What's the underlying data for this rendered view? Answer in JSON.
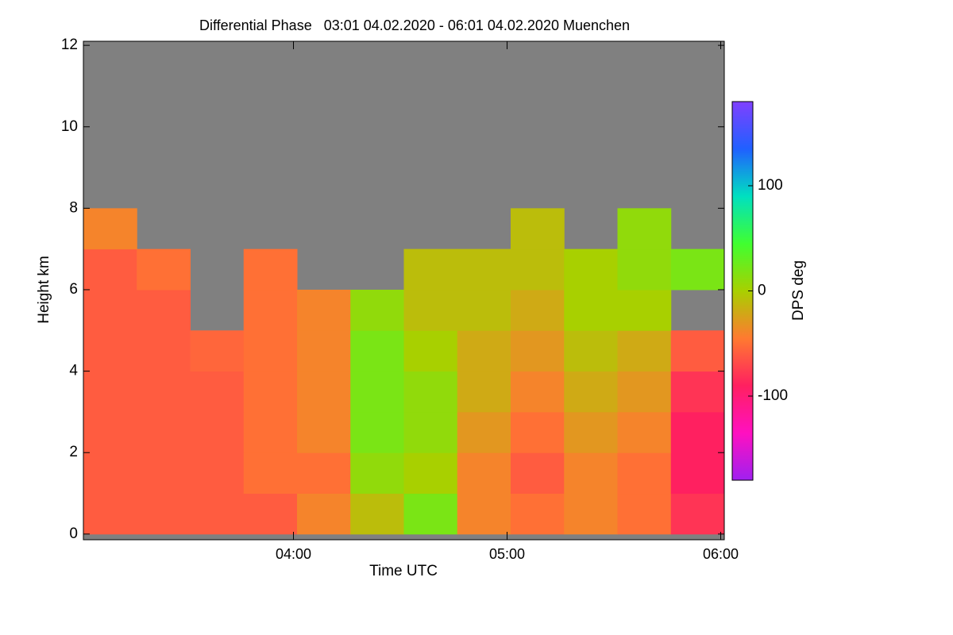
{
  "chart_data": {
    "type": "heatmap",
    "title": "Differential Phase   03:01 04.02.2020 - 06:01 04.02.2020 Muenchen",
    "x_label": "Time UTC",
    "y_label": "Height km",
    "colorbar_label": "DPS deg",
    "xlim": [
      "03:01",
      "06:01"
    ],
    "xticks": [
      "04:00",
      "05:00",
      "06:00"
    ],
    "ylim": [
      -0.14,
      12.1
    ],
    "yticks": [
      0,
      2,
      4,
      6,
      8,
      10,
      12
    ],
    "clim": [
      -180,
      180
    ],
    "cticks": [
      -100,
      0,
      100
    ],
    "colormap": [
      "#a020f0",
      "#ff10c0",
      "#ff2060",
      "#ff7a30",
      "#a8d000",
      "#40ff30",
      "#00e0c0",
      "#2060ff",
      "#8040ff"
    ],
    "missing_color": "#808080",
    "xbins": [
      "03:01",
      "03:16",
      "03:31",
      "03:46",
      "04:01",
      "04:16",
      "04:31",
      "04:46",
      "05:01",
      "05:16",
      "05:31",
      "05:46",
      "06:01"
    ],
    "ybins": [
      0,
      1,
      2,
      3,
      4,
      5,
      6,
      7,
      8
    ],
    "values": [
      [
        -60,
        -60,
        -60,
        -60,
        -40,
        -10,
        20,
        -40,
        -50,
        -40,
        -50,
        -80
      ],
      [
        -60,
        -60,
        -60,
        -50,
        -50,
        10,
        0,
        -40,
        -60,
        -40,
        -50,
        -90
      ],
      [
        -60,
        -60,
        -60,
        -50,
        -40,
        20,
        10,
        -30,
        -50,
        -30,
        -40,
        -90
      ],
      [
        -60,
        -60,
        -60,
        -50,
        -40,
        20,
        10,
        -20,
        -40,
        -20,
        -30,
        -80
      ],
      [
        -60,
        -60,
        -55,
        -50,
        -40,
        20,
        0,
        -20,
        -30,
        -10,
        -20,
        -60
      ],
      [
        -60,
        -60,
        null,
        -50,
        -40,
        10,
        -10,
        -10,
        -20,
        0,
        0,
        null
      ],
      [
        -60,
        -50,
        null,
        -50,
        null,
        null,
        -10,
        -10,
        -10,
        0,
        10,
        20
      ],
      [
        -40,
        null,
        null,
        null,
        null,
        null,
        null,
        null,
        -10,
        null,
        10,
        null
      ]
    ]
  }
}
